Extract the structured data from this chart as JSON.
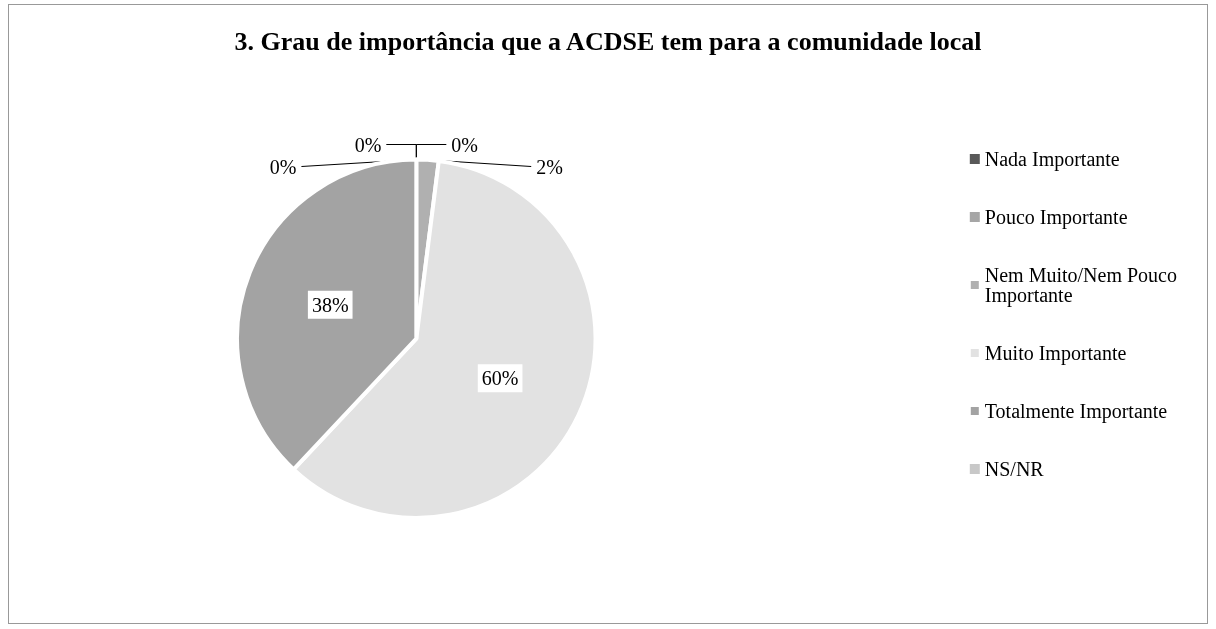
{
  "chart_data": {
    "type": "pie",
    "title": "3. Grau de importância que a ACDSE tem para a comunidade local",
    "categories": [
      "Nada Importante",
      "Pouco Importante",
      "Nem Muito/Nem Pouco Importante",
      "Muito Importante",
      "Totalmente Importante",
      "NS/NR"
    ],
    "values": [
      0,
      0,
      2,
      60,
      38,
      0
    ],
    "colors": [
      "#595959",
      "#a6a6a6",
      "#b0b0b0",
      "#e2e2e2",
      "#a3a3a3",
      "#c8c8c8"
    ],
    "value_labels": [
      "0%",
      "0%",
      "2%",
      "60%",
      "38%",
      "0%"
    ],
    "legend": "right"
  }
}
